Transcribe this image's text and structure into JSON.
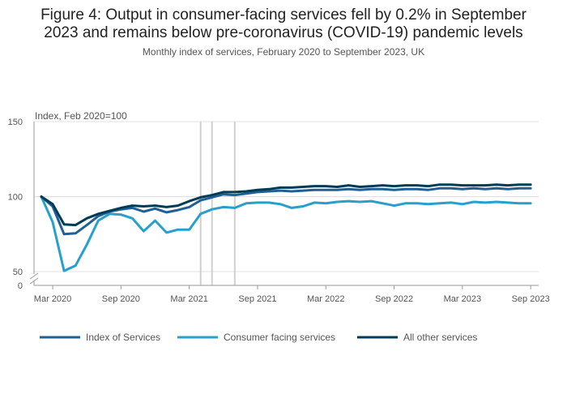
{
  "title_line1": "Figure 4: Output in consumer-facing services fell by 0.2% in September",
  "title_line2": "2023 and remains below pre-coronavirus (COVID-19) pandemic levels",
  "subtitle": "Monthly index of services, February 2020 to September 2023, UK",
  "colors": {
    "Index of Services": "#206095",
    "Consumer facing services": "#27a0cc",
    "All other services": "#003c57"
  },
  "chart_data": {
    "type": "line",
    "ylabel": "Index, Feb 2020=100",
    "ylim": [
      50,
      150
    ],
    "yticks": [
      150,
      100,
      50,
      0
    ],
    "axis_break": true,
    "xtick_labels": [
      "Mar 2020",
      "Sep 2020",
      "Mar 2021",
      "Sep 2021",
      "Mar 2022",
      "Sep 2022",
      "Mar 2023",
      "Sep 2023"
    ],
    "x": [
      "Feb 2020",
      "Mar 2020",
      "Apr 2020",
      "May 2020",
      "Jun 2020",
      "Jul 2020",
      "Aug 2020",
      "Sep 2020",
      "Oct 2020",
      "Nov 2020",
      "Dec 2020",
      "Jan 2021",
      "Feb 2021",
      "Mar 2021",
      "Apr 2021",
      "May 2021",
      "Jun 2021",
      "Jul 2021",
      "Aug 2021",
      "Sep 2021",
      "Oct 2021",
      "Nov 2021",
      "Dec 2021",
      "Jan 2022",
      "Feb 2022",
      "Mar 2022",
      "Apr 2022",
      "May 2022",
      "Jun 2022",
      "Jul 2022",
      "Aug 2022",
      "Sep 2022",
      "Oct 2022",
      "Nov 2022",
      "Dec 2022",
      "Jan 2023",
      "Feb 2023",
      "Mar 2023",
      "Apr 2023",
      "May 2023",
      "Jun 2023",
      "Jul 2023",
      "Aug 2023",
      "Sep 2023"
    ],
    "vertical_reference_lines": [
      "Apr 2021",
      "May 2021",
      "Jul 2021"
    ],
    "grid": true,
    "legend_position": "bottom",
    "series": [
      {
        "name": "Index of Services",
        "values": [
          100,
          93.5,
          75,
          75.5,
          81,
          87,
          90,
          91.5,
          92.5,
          90,
          92,
          89.5,
          91,
          93,
          97.5,
          99.5,
          101.5,
          101,
          102,
          103,
          103.5,
          104,
          103.5,
          104,
          104.5,
          104.5,
          104.5,
          105,
          104.5,
          105,
          105,
          104.5,
          105,
          105,
          104.5,
          105.5,
          105.5,
          105,
          105.5,
          105,
          105.5,
          105,
          105.5,
          105.5
        ]
      },
      {
        "name": "Consumer facing services",
        "values": [
          100,
          83,
          50.5,
          54,
          68,
          84,
          88.5,
          88,
          85.5,
          77,
          84,
          76,
          78,
          78,
          88.5,
          91.5,
          93,
          92.5,
          95.5,
          96,
          96,
          95,
          92.5,
          93.5,
          96,
          95.5,
          96.5,
          97,
          96.5,
          97,
          95.5,
          94,
          95.5,
          95.5,
          95,
          95.5,
          96,
          95,
          96.5,
          96,
          96.5,
          96,
          95.5,
          95.5
        ]
      },
      {
        "name": "All other services",
        "values": [
          100,
          95,
          81.5,
          81,
          85.5,
          88.5,
          90.5,
          92.5,
          94,
          93.5,
          94,
          93,
          94,
          97,
          99.5,
          101,
          103,
          103,
          103.5,
          104.5,
          105,
          106,
          106,
          106.5,
          107,
          107,
          106.5,
          107.5,
          106.5,
          107,
          107.5,
          107,
          107.5,
          107.5,
          107,
          108,
          108,
          107.5,
          107.5,
          107.5,
          108,
          107.5,
          108,
          108
        ]
      }
    ]
  }
}
